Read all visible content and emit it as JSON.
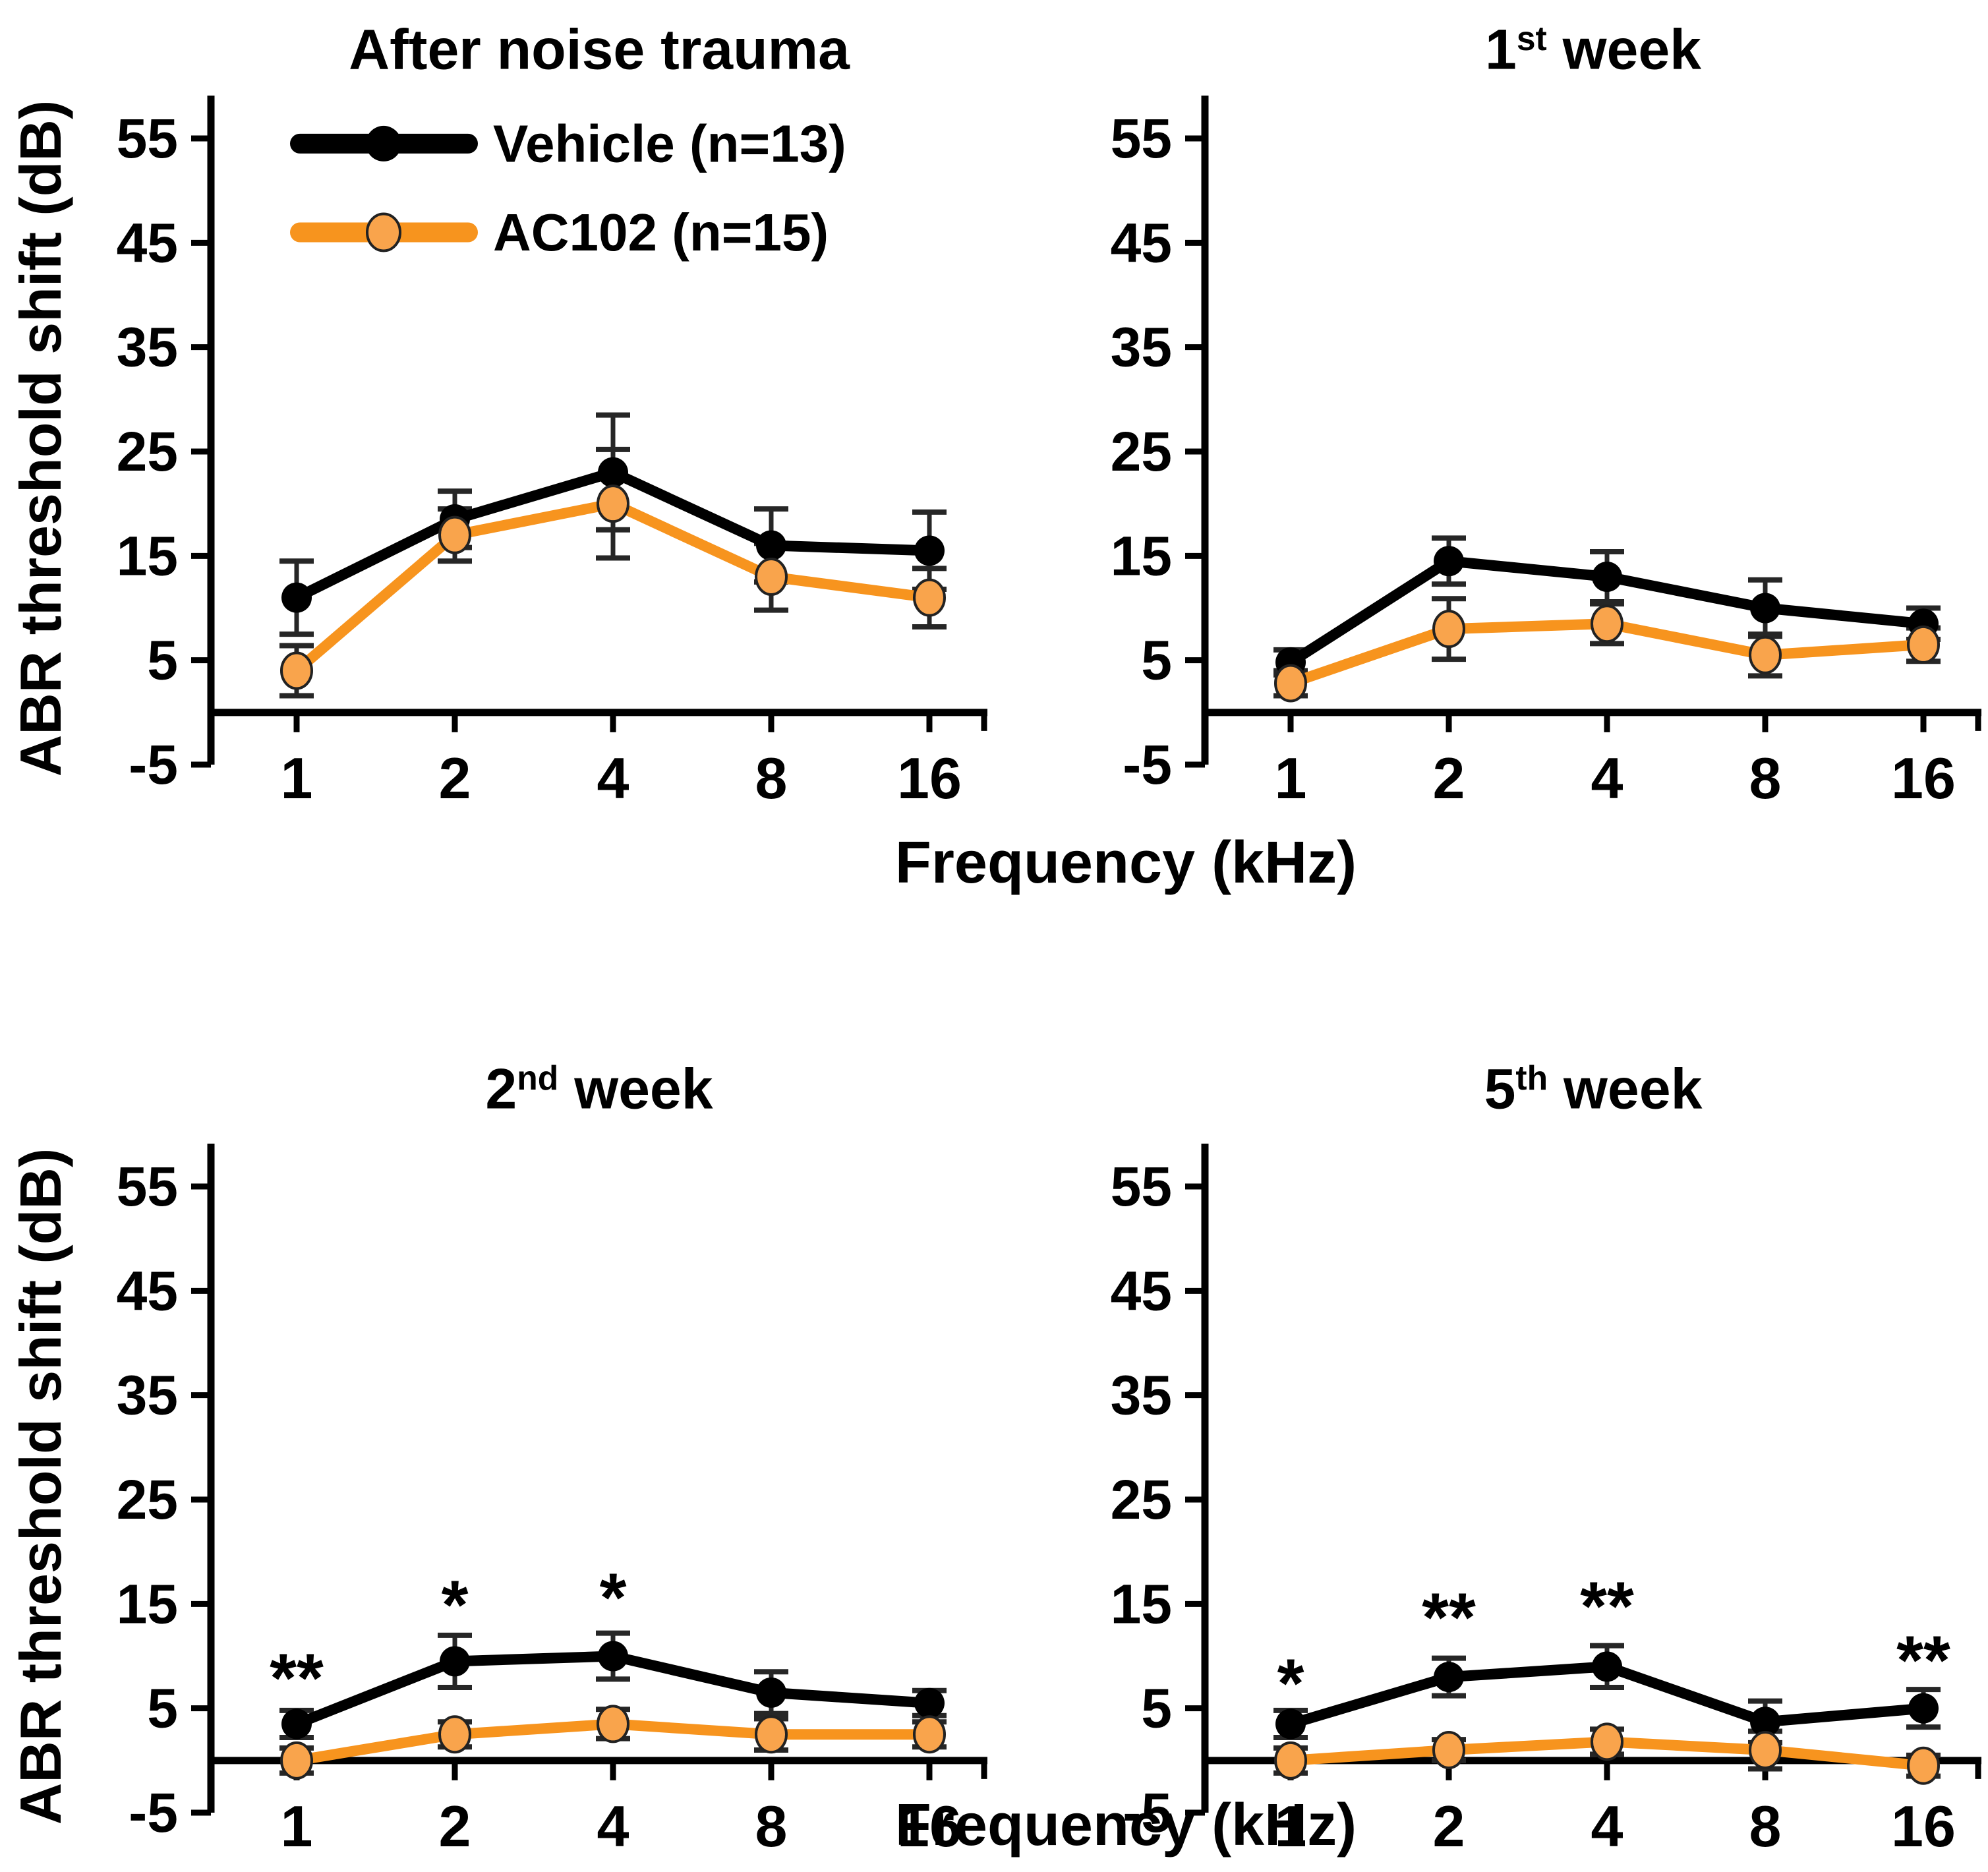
{
  "figure": {
    "ylabel": "ABR threshold shift (dB)",
    "xlabel": "Frequency (kHz)",
    "yticks": [
      55,
      45,
      35,
      25,
      15,
      5,
      -5
    ],
    "ylim": [
      -5,
      57
    ],
    "x_axis_at_value": 0,
    "grid": false,
    "colors": {
      "vehicle": "#000000",
      "ac102_line": "#F7941E",
      "ac102_marker_fill": "#F9A44C",
      "marker_edge": "#222222",
      "error_bar": "#262626"
    },
    "legend": {
      "position": "top-left-panel-upper-left",
      "items": [
        {
          "label": "Vehicle (n=13)",
          "series": "vehicle",
          "marker": "filled-circle"
        },
        {
          "label": "AC102 (n=15)",
          "series": "ac102",
          "marker": "outlined-circle"
        }
      ]
    }
  },
  "chart_data": [
    {
      "type": "line",
      "title": {
        "prefix": "After noise trauma",
        "sup": "",
        "suffix": ""
      },
      "x_categories": [
        "1",
        "2",
        "4",
        "8",
        "16"
      ],
      "x_scale": "log2-equal-spacing",
      "series": [
        {
          "name": "Vehicle (n=13)",
          "values": [
            11,
            18.5,
            23,
            16,
            15.5
          ],
          "errors": [
            3.5,
            2.7,
            5.5,
            3.5,
            3.7
          ]
        },
        {
          "name": "AC102 (n=15)",
          "values": [
            4,
            17,
            20,
            13,
            11
          ],
          "errors": [
            2.4,
            2.5,
            5.2,
            3.2,
            2.8
          ]
        }
      ],
      "significance": []
    },
    {
      "type": "line",
      "title": {
        "prefix": "1",
        "sup": "st",
        "suffix": " week"
      },
      "x_categories": [
        "1",
        "2",
        "4",
        "8",
        "16"
      ],
      "x_scale": "log2-equal-spacing",
      "series": [
        {
          "name": "Vehicle (n=13)",
          "values": [
            4.8,
            14.5,
            13,
            10,
            8.5
          ],
          "errors": [
            1.2,
            2.2,
            2.4,
            2.7,
            1.5
          ]
        },
        {
          "name": "AC102 (n=15)",
          "values": [
            2.8,
            8,
            8.5,
            5.5,
            6.5
          ],
          "errors": [
            1.2,
            2.9,
            1.9,
            2,
            1.6
          ]
        }
      ],
      "significance": []
    },
    {
      "type": "line",
      "title": {
        "prefix": "2",
        "sup": "nd",
        "suffix": " week"
      },
      "x_categories": [
        "1",
        "2",
        "4",
        "8",
        "16"
      ],
      "x_scale": "log2-equal-spacing",
      "series": [
        {
          "name": "Vehicle (n=13)",
          "values": [
            3.5,
            9.5,
            10,
            6.5,
            5.5
          ],
          "errors": [
            1.3,
            2.5,
            2.2,
            2,
            1.2
          ]
        },
        {
          "name": "AC102 (n=15)",
          "values": [
            0,
            2.5,
            3.5,
            2.5,
            2.5
          ],
          "errors": [
            1.2,
            1.2,
            1.4,
            1.5,
            1.2
          ]
        }
      ],
      "significance": [
        {
          "x": "1",
          "y": 8.8,
          "label": "**"
        },
        {
          "x": "2",
          "y": 15.8,
          "label": "*"
        },
        {
          "x": "4",
          "y": 16.5,
          "label": "*"
        }
      ]
    },
    {
      "type": "line",
      "title": {
        "prefix": "5",
        "sup": "th",
        "suffix": " week"
      },
      "x_categories": [
        "1",
        "2",
        "4",
        "8",
        "16"
      ],
      "x_scale": "log2-equal-spacing",
      "series": [
        {
          "name": "Vehicle (n=13)",
          "values": [
            3.5,
            8,
            9,
            3.7,
            5
          ],
          "errors": [
            1.3,
            1.8,
            2,
            2,
            1.8
          ]
        },
        {
          "name": "AC102 (n=15)",
          "values": [
            0,
            1,
            1.8,
            1,
            -0.5
          ],
          "errors": [
            1.2,
            1,
            1.2,
            1.8,
            1
          ]
        }
      ],
      "significance": [
        {
          "x": "1",
          "y": 8.3,
          "label": "*"
        },
        {
          "x": "2",
          "y": 14.6,
          "label": "**"
        },
        {
          "x": "4",
          "y": 15.7,
          "label": "**"
        },
        {
          "x": "16",
          "y": 10.5,
          "label": "**"
        }
      ]
    }
  ]
}
